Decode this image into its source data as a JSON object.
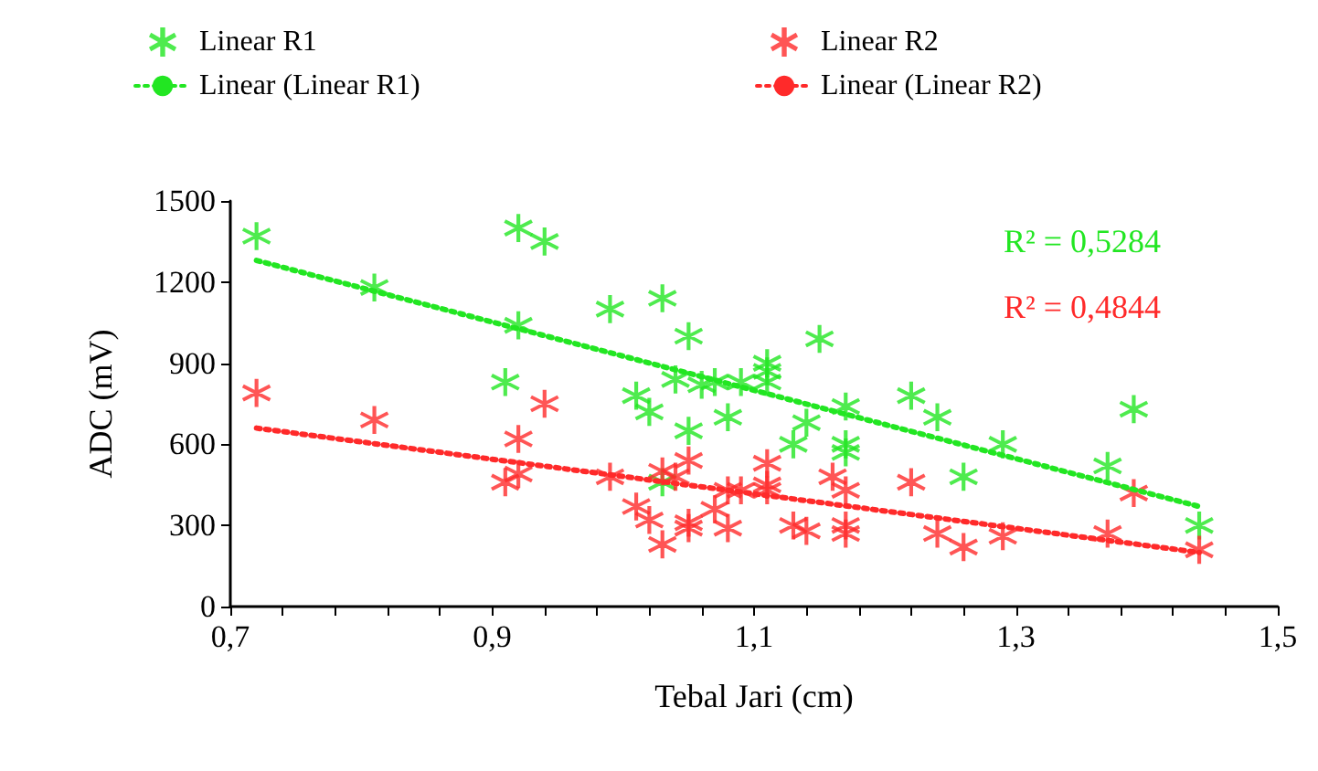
{
  "chart_data": {
    "type": "scatter",
    "xlabel": "Tebal Jari (cm)",
    "ylabel": "ADC (mV)",
    "legend": "top",
    "grid": false,
    "xlim": [
      0.7,
      1.5
    ],
    "ylim": [
      0,
      1500
    ],
    "xticks": [
      {
        "value": 0.7,
        "label": "0,7"
      },
      {
        "value": 0.74,
        "label": null
      },
      {
        "value": 0.78,
        "label": null
      },
      {
        "value": 0.82,
        "label": null
      },
      {
        "value": 0.86,
        "label": null
      },
      {
        "value": 0.9,
        "label": "0,9"
      },
      {
        "value": 0.94,
        "label": null
      },
      {
        "value": 0.98,
        "label": null
      },
      {
        "value": 1.02,
        "label": null
      },
      {
        "value": 1.06,
        "label": null
      },
      {
        "value": 1.1,
        "label": "1,1"
      },
      {
        "value": 1.14,
        "label": null
      },
      {
        "value": 1.18,
        "label": null
      },
      {
        "value": 1.22,
        "label": null
      },
      {
        "value": 1.26,
        "label": null
      },
      {
        "value": 1.3,
        "label": "1,3"
      },
      {
        "value": 1.34,
        "label": null
      },
      {
        "value": 1.38,
        "label": null
      },
      {
        "value": 1.42,
        "label": null
      },
      {
        "value": 1.46,
        "label": null
      },
      {
        "value": 1.5,
        "label": "1,5"
      }
    ],
    "yticks": [
      0,
      300,
      600,
      900,
      1200,
      1500
    ],
    "annotations": [
      "R² = 0,5284",
      "R² = 0,4844"
    ],
    "series": [
      {
        "name": "Linear R1",
        "color": "#22e622",
        "marker": "cross",
        "x": [
          0.72,
          0.81,
          0.92,
          0.94,
          0.92,
          0.91,
          0.99,
          1.03,
          1.05,
          1.01,
          1.02,
          1.04,
          1.06,
          1.07,
          1.08,
          1.05,
          1.03,
          1.09,
          1.11,
          1.11,
          1.11,
          1.15,
          1.13,
          1.14,
          1.17,
          1.17,
          1.17,
          1.22,
          1.24,
          1.26,
          1.29,
          1.37,
          1.39,
          1.44
        ],
        "values": [
          1370,
          1180,
          1400,
          1350,
          1040,
          830,
          1100,
          1140,
          1000,
          780,
          720,
          840,
          820,
          830,
          700,
          650,
          460,
          830,
          900,
          870,
          830,
          990,
          600,
          680,
          740,
          600,
          570,
          780,
          700,
          480,
          600,
          520,
          730,
          300
        ]
      },
      {
        "name": "Linear R2",
        "color": "#ff2a2a",
        "marker": "cross",
        "x": [
          0.72,
          0.81,
          0.91,
          0.92,
          0.92,
          0.94,
          0.99,
          1.01,
          1.02,
          1.03,
          1.03,
          1.04,
          1.05,
          1.05,
          1.05,
          1.07,
          1.08,
          1.08,
          1.09,
          1.11,
          1.11,
          1.11,
          1.13,
          1.14,
          1.16,
          1.17,
          1.17,
          1.17,
          1.22,
          1.24,
          1.26,
          1.29,
          1.37,
          1.39,
          1.44
        ],
        "values": [
          790,
          690,
          460,
          490,
          620,
          750,
          480,
          370,
          320,
          500,
          230,
          480,
          540,
          310,
          290,
          360,
          290,
          430,
          430,
          530,
          450,
          430,
          300,
          280,
          480,
          430,
          300,
          270,
          460,
          270,
          220,
          260,
          270,
          420,
          210
        ]
      },
      {
        "name": "Linear (Linear R1)",
        "type": "line",
        "color": "#22e622",
        "line_style": "dotted",
        "marker": "none",
        "x": [
          0.72,
          1.44
        ],
        "values": [
          1280,
          370
        ]
      },
      {
        "name": "Linear (Linear R2)",
        "type": "line",
        "color": "#ff2a2a",
        "line_style": "dotted",
        "marker": "none",
        "x": [
          0.72,
          1.44
        ],
        "values": [
          660,
          200
        ]
      }
    ]
  }
}
